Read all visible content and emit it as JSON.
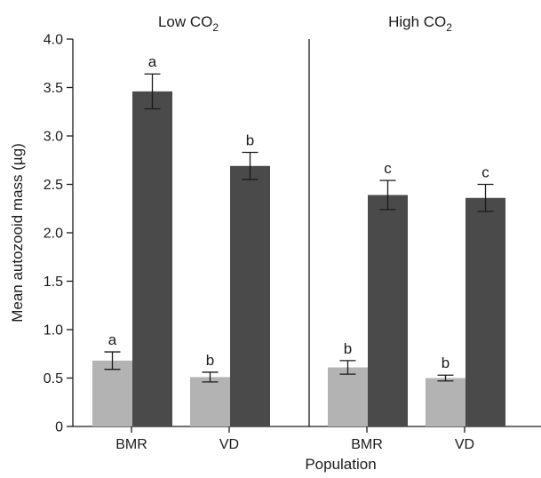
{
  "chart_data": {
    "type": "bar",
    "xlabel": "Population",
    "ylabel": "Mean autozooid mass (µg)",
    "ylim": [
      0,
      4
    ],
    "yticks": [
      "0",
      "0.5",
      "1.0",
      "1.5",
      "2.0",
      "2.5",
      "3.0",
      "3.5",
      "4.0"
    ],
    "grid": false,
    "colors": {
      "light": "#b3b3b3",
      "dark": "#4a4a4a"
    },
    "panels": [
      {
        "title": "Low CO",
        "title_sub": "2",
        "categories": [
          "BMR",
          "VD"
        ],
        "bars": [
          {
            "category": "BMR",
            "shade": "light",
            "value": 0.68,
            "error": 0.09,
            "label": "a"
          },
          {
            "category": "BMR",
            "shade": "dark",
            "value": 3.46,
            "error": 0.18,
            "label": "a"
          },
          {
            "category": "VD",
            "shade": "light",
            "value": 0.51,
            "error": 0.05,
            "label": "b"
          },
          {
            "category": "VD",
            "shade": "dark",
            "value": 2.69,
            "error": 0.14,
            "label": "b"
          }
        ]
      },
      {
        "title": "High CO",
        "title_sub": "2",
        "categories": [
          "BMR",
          "VD"
        ],
        "bars": [
          {
            "category": "BMR",
            "shade": "light",
            "value": 0.61,
            "error": 0.07,
            "label": "b"
          },
          {
            "category": "BMR",
            "shade": "dark",
            "value": 2.39,
            "error": 0.15,
            "label": "c"
          },
          {
            "category": "VD",
            "shade": "light",
            "value": 0.5,
            "error": 0.03,
            "label": "b"
          },
          {
            "category": "VD",
            "shade": "dark",
            "value": 2.36,
            "error": 0.14,
            "label": "c"
          }
        ]
      }
    ]
  }
}
